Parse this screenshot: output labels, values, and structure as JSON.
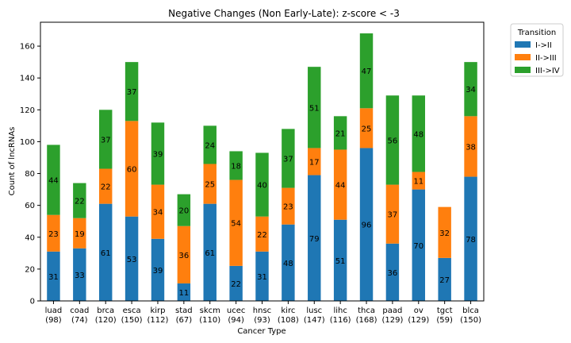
{
  "chart_data": {
    "type": "bar",
    "stacked": true,
    "title": "Negative Changes (Non Early-Late): z-score < -3",
    "xlabel": "Cancer Type",
    "ylabel": "Count of lncRNAs",
    "ylim": [
      0,
      175
    ],
    "yticks": [
      0,
      20,
      40,
      60,
      80,
      100,
      120,
      140,
      160
    ],
    "grid": false,
    "legend_title": "Transition",
    "legend_position": "outside-top-right",
    "categories": [
      "luad",
      "coad",
      "brca",
      "esca",
      "kirp",
      "stad",
      "skcm",
      "ucec",
      "hnsc",
      "kirc",
      "lusc",
      "lihc",
      "thca",
      "paad",
      "ov",
      "tgct",
      "blca"
    ],
    "category_totals": [
      "(98)",
      "(74)",
      "(120)",
      "(150)",
      "(112)",
      "(67)",
      "(110)",
      "(94)",
      "(93)",
      "(108)",
      "(147)",
      "(116)",
      "(168)",
      "(129)",
      "(129)",
      "(59)",
      "(150)"
    ],
    "series": [
      {
        "name": "I->II",
        "color": "#1f77b4",
        "values": [
          31,
          33,
          61,
          53,
          39,
          11,
          61,
          22,
          31,
          48,
          79,
          51,
          96,
          36,
          70,
          27,
          78
        ]
      },
      {
        "name": "II->III",
        "color": "#ff7f0e",
        "values": [
          23,
          19,
          22,
          60,
          34,
          36,
          25,
          54,
          22,
          23,
          17,
          44,
          25,
          37,
          11,
          32,
          38
        ]
      },
      {
        "name": "III->IV",
        "color": "#2ca02c",
        "values": [
          44,
          22,
          37,
          37,
          39,
          20,
          24,
          18,
          40,
          37,
          51,
          21,
          47,
          56,
          48,
          0,
          34
        ]
      }
    ]
  }
}
